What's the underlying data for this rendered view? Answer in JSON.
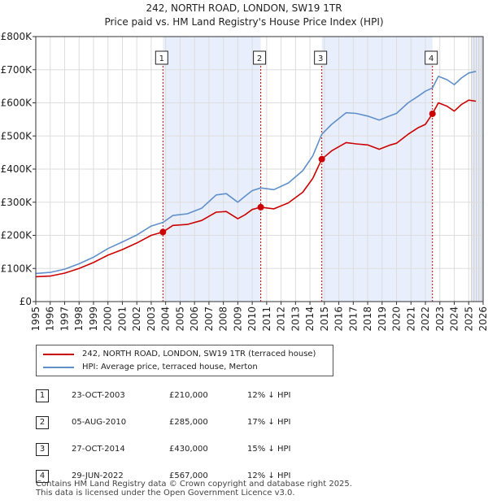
{
  "title_line1": "242, NORTH ROAD, LONDON, SW19 1TR",
  "title_line2": "Price paid vs. HM Land Registry's House Price Index (HPI)",
  "colors": {
    "price": "#cc0000",
    "hpi": "#6090cc",
    "shade": "#e8eefb",
    "vline": "#cc0000"
  },
  "chart_data": {
    "type": "line",
    "title": "242, NORTH ROAD, LONDON, SW19 1TR — Price paid vs. HM Land Registry's House Price Index (HPI)",
    "xlim": [
      1995,
      2026
    ],
    "ylim": [
      0,
      800000
    ],
    "y_ticks": [
      0,
      100000,
      200000,
      300000,
      400000,
      500000,
      600000,
      700000,
      800000
    ],
    "y_tick_labels": [
      "£0",
      "£100K",
      "£200K",
      "£300K",
      "£400K",
      "£500K",
      "£600K",
      "£700K",
      "£800K"
    ],
    "x_ticks": [
      1995,
      1996,
      1997,
      1998,
      1999,
      2000,
      2001,
      2002,
      2003,
      2004,
      2005,
      2006,
      2007,
      2008,
      2009,
      2010,
      2011,
      2012,
      2013,
      2014,
      2015,
      2016,
      2017,
      2018,
      2019,
      2020,
      2021,
      2022,
      2023,
      2024,
      2025,
      2026
    ],
    "x_tick_labels": [
      "1995",
      "1996",
      "1997",
      "1998",
      "1999",
      "2000",
      "2001",
      "2002",
      "2003",
      "2004",
      "2005",
      "2006",
      "2007",
      "2008",
      "2009",
      "2010",
      "2011",
      "2012",
      "2013",
      "2014",
      "2015",
      "2016",
      "2017",
      "2018",
      "2019",
      "2020",
      "2021",
      "2022",
      "2023",
      "2024",
      "2025",
      "2026"
    ],
    "grid": true,
    "series": [
      {
        "name": "242, NORTH ROAD, LONDON, SW19 1TR (terraced house)",
        "x": [
          1995.0,
          1996.0,
          1997.0,
          1998.0,
          1999.0,
          2000.0,
          2001.0,
          2002.0,
          2003.0,
          2003.81,
          2004.5,
          2005.5,
          2006.5,
          2007.5,
          2008.2,
          2009.0,
          2009.5,
          2010.0,
          2010.59,
          2011.5,
          2012.5,
          2013.5,
          2014.2,
          2014.82,
          2015.5,
          2016.5,
          2017.2,
          2018.0,
          2018.8,
          2019.5,
          2020.0,
          2020.8,
          2021.5,
          2022.0,
          2022.49,
          2022.9,
          2023.5,
          2024.0,
          2024.5,
          2025.0,
          2025.5
        ],
        "y": [
          75000,
          77000,
          86000,
          100000,
          118000,
          140000,
          157000,
          177000,
          200000,
          210000,
          230000,
          233000,
          245000,
          270000,
          272000,
          250000,
          262000,
          278000,
          285000,
          280000,
          298000,
          330000,
          372000,
          430000,
          455000,
          480000,
          476000,
          473000,
          460000,
          472000,
          478000,
          505000,
          525000,
          535000,
          567000,
          600000,
          590000,
          575000,
          595000,
          608000,
          605000
        ]
      },
      {
        "name": "HPI: Average price, terraced house, Merton",
        "x": [
          1995.0,
          1996.0,
          1997.0,
          1998.0,
          1999.0,
          2000.0,
          2001.0,
          2002.0,
          2003.0,
          2003.81,
          2004.5,
          2005.5,
          2006.5,
          2007.5,
          2008.2,
          2009.0,
          2009.5,
          2010.0,
          2010.59,
          2011.5,
          2012.5,
          2013.5,
          2014.2,
          2014.82,
          2015.5,
          2016.5,
          2017.2,
          2018.0,
          2018.8,
          2019.5,
          2020.0,
          2020.8,
          2021.5,
          2022.0,
          2022.49,
          2022.9,
          2023.5,
          2024.0,
          2024.5,
          2025.0,
          2025.5
        ],
        "y": [
          85000,
          88000,
          98000,
          114000,
          134000,
          160000,
          180000,
          201000,
          228000,
          239000,
          260000,
          265000,
          282000,
          322000,
          326000,
          300000,
          318000,
          335000,
          343000,
          338000,
          358000,
          395000,
          440000,
          505000,
          535000,
          570000,
          568000,
          560000,
          548000,
          560000,
          568000,
          600000,
          620000,
          635000,
          645000,
          680000,
          670000,
          655000,
          675000,
          690000,
          695000
        ]
      }
    ],
    "sales": [
      {
        "label": "1",
        "x": 2003.81,
        "y": 210000
      },
      {
        "label": "2",
        "x": 2010.59,
        "y": 285000
      },
      {
        "label": "3",
        "x": 2014.82,
        "y": 430000
      },
      {
        "label": "4",
        "x": 2022.49,
        "y": 567000
      }
    ],
    "shaded_ranges": [
      [
        2003.81,
        2010.59
      ],
      [
        2014.82,
        2022.49
      ],
      [
        2025.2,
        2026
      ]
    ]
  },
  "legend": {
    "price_label": "242, NORTH ROAD, LONDON, SW19 1TR (terraced house)",
    "hpi_label": "HPI: Average price, terraced house, Merton"
  },
  "sales_table": [
    {
      "num": "1",
      "date": "23-OCT-2003",
      "price": "£210,000",
      "hpi": "12% ↓ HPI"
    },
    {
      "num": "2",
      "date": "05-AUG-2010",
      "price": "£285,000",
      "hpi": "17% ↓ HPI"
    },
    {
      "num": "3",
      "date": "27-OCT-2014",
      "price": "£430,000",
      "hpi": "15% ↓ HPI"
    },
    {
      "num": "4",
      "date": "29-JUN-2022",
      "price": "£567,000",
      "hpi": "12% ↓ HPI"
    }
  ],
  "footer": {
    "line1": "Contains HM Land Registry data © Crown copyright and database right 2025.",
    "line2": "This data is licensed under the Open Government Licence v3.0."
  }
}
